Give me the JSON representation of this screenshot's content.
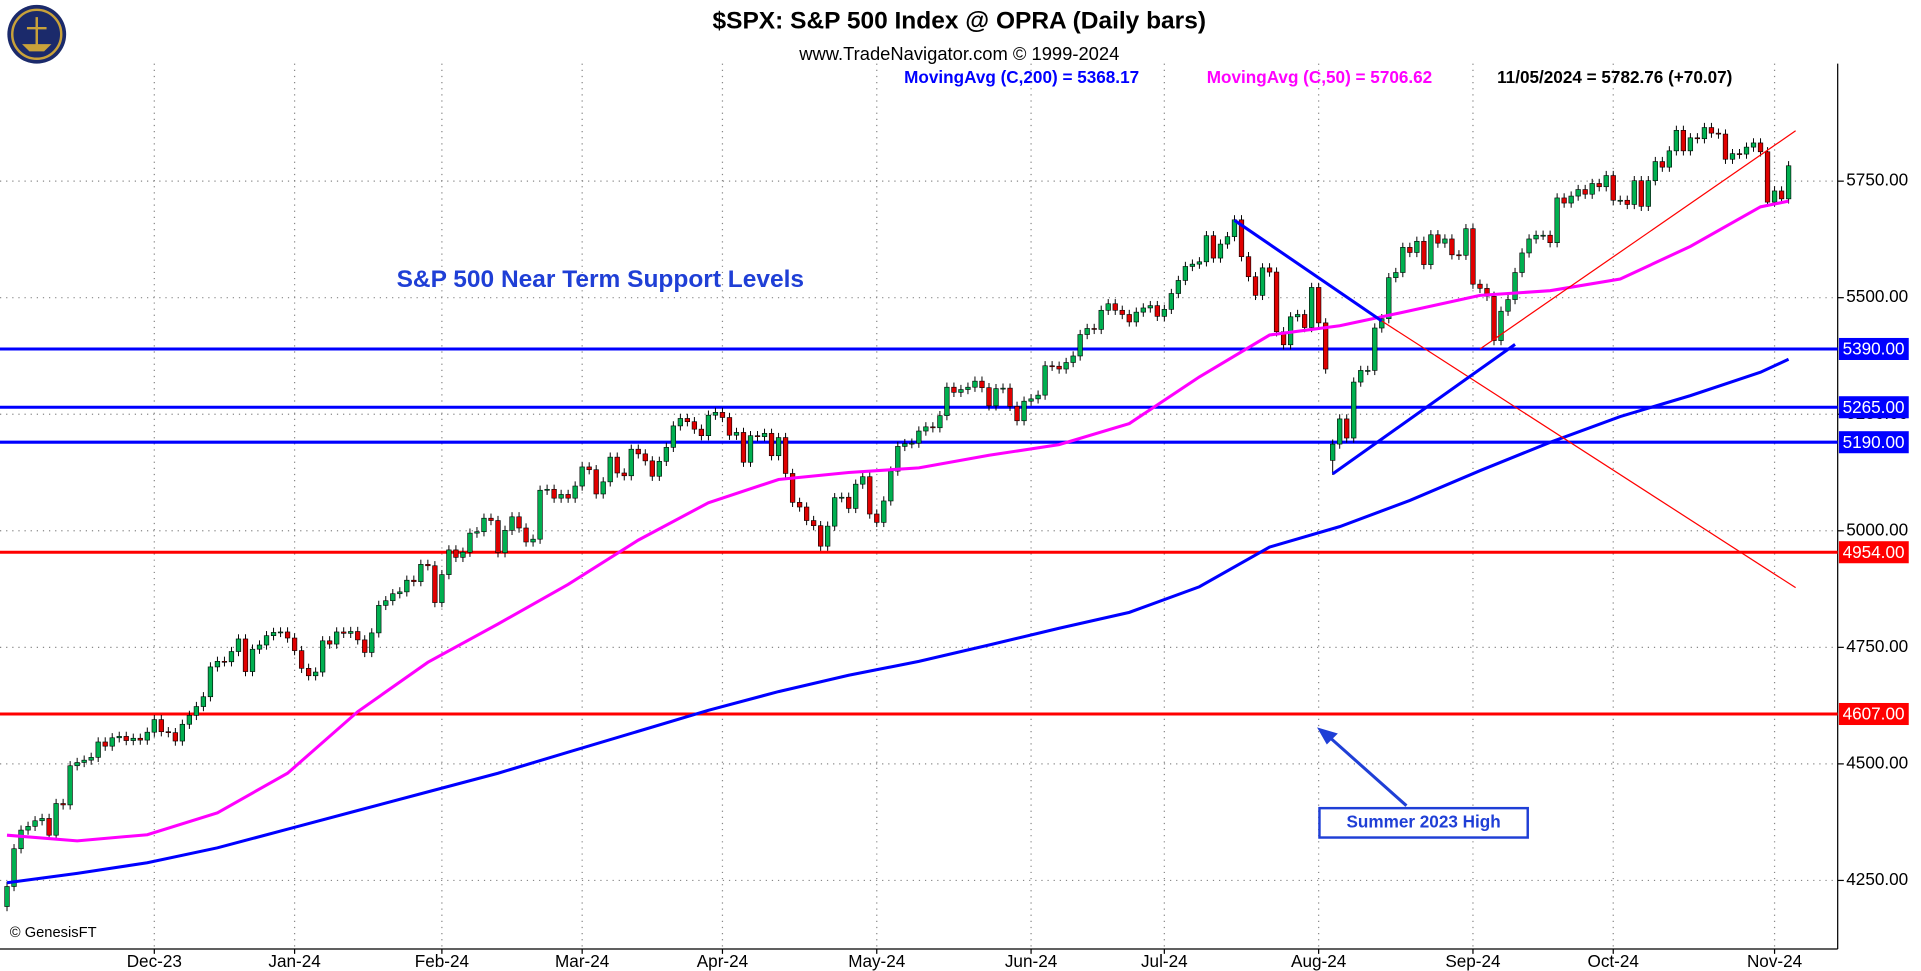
{
  "chart_data": {
    "type": "candlestick",
    "title": "$SPX:  S&P 500 Index @ OPRA  (Daily bars)",
    "subtitle": "www.TradeNavigator.com © 1999-2024",
    "last_label": "11/05/2024 = 5782.76 (+70.07)",
    "annotation": "S&P 500 Near Term Support Levels",
    "callout": "Summer 2023 High",
    "copyright": "© GenesisFT",
    "up_color": "#00b050",
    "down_color": "#e00000",
    "grid": true,
    "xlim": [
      -1,
      261
    ],
    "ylim": [
      4103,
      6002
    ],
    "xticks": [
      {
        "value": 21,
        "label": "Dec-23"
      },
      {
        "value": 41,
        "label": "Jan-24"
      },
      {
        "value": 62,
        "label": "Feb-24"
      },
      {
        "value": 82,
        "label": "Mar-24"
      },
      {
        "value": 102,
        "label": "Apr-24"
      },
      {
        "value": 124,
        "label": "May-24"
      },
      {
        "value": 146,
        "label": "Jun-24"
      },
      {
        "value": 165,
        "label": "Jul-24"
      },
      {
        "value": 187,
        "label": "Aug-24"
      },
      {
        "value": 209,
        "label": "Sep-24"
      },
      {
        "value": 229,
        "label": "Oct-24"
      },
      {
        "value": 252,
        "label": "Nov-24"
      }
    ],
    "yticks": [
      {
        "value": 4250,
        "label": "4250.00"
      },
      {
        "value": 4500,
        "label": "4500.00"
      },
      {
        "value": 4750,
        "label": "4750.00"
      },
      {
        "value": 5000,
        "label": "5000.00"
      },
      {
        "value": 5250,
        "label": "5250.00"
      },
      {
        "value": 5500,
        "label": "5500.00"
      },
      {
        "value": 5750,
        "label": "5750.00"
      }
    ],
    "open": [
      4194,
      4237,
      4318,
      4358,
      4366,
      4378,
      4383,
      4347,
      4415,
      4412,
      4496,
      4503,
      4508,
      4514,
      4547,
      4538,
      4556,
      4559,
      4550,
      4555,
      4551,
      4568,
      4595,
      4569,
      4567,
      4549,
      4585,
      4604,
      4623,
      4644,
      4708,
      4720,
      4719,
      4741,
      4768,
      4698,
      4746,
      4755,
      4775,
      4782,
      4783,
      4770,
      4743,
      4705,
      4689,
      4697,
      4764,
      4757,
      4783,
      4780,
      4784,
      4766,
      4739,
      4781,
      4840,
      4850,
      4865,
      4869,
      4894,
      4891,
      4928,
      4925,
      4846,
      4906,
      4959,
      4943,
      4954,
      4995,
      4998,
      5027,
      5022,
      4953,
      5001,
      5030,
      5006,
      4976,
      4982,
      5087,
      5089,
      5070,
      5078,
      5070,
      5096,
      5137,
      5131,
      5079,
      5105,
      5158,
      5124,
      5118,
      5175,
      5165,
      5150,
      5117,
      5149,
      5179,
      5225,
      5241,
      5234,
      5218,
      5204,
      5248,
      5254,
      5243,
      5205,
      5211,
      5147,
      5204,
      5202,
      5209,
      5161,
      5200,
      5123,
      5061,
      5051,
      5022,
      5011,
      4967,
      5010,
      5071,
      5072,
      5048,
      5100,
      5116,
      5036,
      5018,
      5064,
      5128,
      5181,
      5187,
      5188,
      5214,
      5223,
      5221,
      5247,
      5308,
      5297,
      5303,
      5308,
      5321,
      5307,
      5268,
      5305,
      5306,
      5267,
      5236,
      5278,
      5283,
      5291,
      5354,
      5353,
      5347,
      5361,
      5375,
      5421,
      5434,
      5432,
      5473,
      5487,
      5473,
      5464,
      5448,
      5469,
      5478,
      5483,
      5460,
      5475,
      5509,
      5537,
      5567,
      5572,
      5577,
      5633,
      5585,
      5615,
      5631,
      5667,
      5588,
      5545,
      5505,
      5564,
      5555,
      5427,
      5399,
      5459,
      5464,
      5436,
      5522,
      5446,
      5151,
      5186,
      5240,
      5199,
      5319,
      5344,
      5344,
      5435,
      5455,
      5543,
      5554,
      5608,
      5597,
      5621,
      5571,
      5635,
      5617,
      5626,
      5592,
      5591,
      5648,
      5529,
      5520,
      5503,
      5408,
      5471,
      5496,
      5554,
      5596,
      5626,
      5634,
      5634,
      5618,
      5714,
      5703,
      5718,
      5732,
      5722,
      5745,
      5738,
      5762,
      5709,
      5709,
      5700,
      5751,
      5696,
      5751,
      5792,
      5780,
      5815,
      5859,
      5815,
      5843,
      5841,
      5865,
      5853,
      5851,
      5797,
      5809,
      5808,
      5823,
      5832,
      5813,
      5705,
      5729,
      5712
    ],
    "high": [
      4247,
      4328,
      4368,
      4376,
      4388,
      4393,
      4393,
      4425,
      4425,
      4506,
      4513,
      4518,
      4524,
      4557,
      4557,
      4566,
      4569,
      4569,
      4565,
      4565,
      4578,
      4605,
      4605,
      4579,
      4577,
      4595,
      4614,
      4633,
      4654,
      4718,
      4730,
      4730,
      4751,
      4778,
      4778,
      4756,
      4765,
      4785,
      4792,
      4793,
      4793,
      4780,
      4753,
      4715,
      4707,
      4774,
      4774,
      4793,
      4793,
      4794,
      4794,
      4776,
      4791,
      4850,
      4860,
      4875,
      4879,
      4904,
      4904,
      4938,
      4938,
      4935,
      4916,
      4969,
      4969,
      4964,
      5005,
      5008,
      5037,
      5037,
      5032,
      5011,
      5040,
      5040,
      5016,
      4992,
      5097,
      5099,
      5099,
      5088,
      5088,
      5106,
      5147,
      5147,
      5141,
      5115,
      5168,
      5168,
      5134,
      5185,
      5185,
      5175,
      5160,
      5159,
      5189,
      5235,
      5251,
      5251,
      5244,
      5228,
      5258,
      5264,
      5264,
      5253,
      5221,
      5221,
      5214,
      5214,
      5219,
      5219,
      5210,
      5210,
      5133,
      5071,
      5061,
      5032,
      5021,
      5020,
      5081,
      5082,
      5082,
      5110,
      5126,
      5126,
      5046,
      5074,
      5138,
      5191,
      5197,
      5198,
      5224,
      5233,
      5233,
      5257,
      5318,
      5318,
      5313,
      5318,
      5331,
      5331,
      5317,
      5315,
      5316,
      5316,
      5277,
      5288,
      5293,
      5301,
      5364,
      5364,
      5363,
      5371,
      5385,
      5431,
      5444,
      5444,
      5483,
      5497,
      5497,
      5483,
      5474,
      5479,
      5488,
      5493,
      5493,
      5485,
      5519,
      5547,
      5577,
      5582,
      5587,
      5643,
      5643,
      5625,
      5641,
      5677,
      5677,
      5598,
      5555,
      5574,
      5574,
      5565,
      5437,
      5469,
      5474,
      5474,
      5532,
      5532,
      5456,
      5196,
      5250,
      5250,
      5329,
      5354,
      5354,
      5445,
      5465,
      5553,
      5564,
      5618,
      5618,
      5631,
      5631,
      5645,
      5645,
      5636,
      5636,
      5602,
      5658,
      5658,
      5539,
      5530,
      5513,
      5481,
      5506,
      5564,
      5606,
      5636,
      5644,
      5644,
      5644,
      5724,
      5724,
      5728,
      5742,
      5742,
      5755,
      5755,
      5772,
      5772,
      5719,
      5719,
      5761,
      5761,
      5761,
      5802,
      5802,
      5825,
      5869,
      5869,
      5853,
      5853,
      5875,
      5875,
      5863,
      5861,
      5819,
      5819,
      5833,
      5842,
      5842,
      5823,
      5739,
      5739,
      5793
    ],
    "low": [
      4184,
      4227,
      4308,
      4348,
      4356,
      4368,
      4337,
      4337,
      4402,
      4402,
      4486,
      4493,
      4498,
      4504,
      4528,
      4528,
      4546,
      4540,
      4540,
      4541,
      4541,
      4558,
      4559,
      4557,
      4539,
      4539,
      4575,
      4594,
      4613,
      4634,
      4698,
      4709,
      4709,
      4731,
      4688,
      4688,
      4736,
      4745,
      4765,
      4772,
      4760,
      4733,
      4695,
      4679,
      4679,
      4687,
      4747,
      4747,
      4770,
      4770,
      4756,
      4729,
      4729,
      4771,
      4830,
      4840,
      4855,
      4859,
      4881,
      4881,
      4915,
      4836,
      4836,
      4896,
      4933,
      4933,
      4944,
      4985,
      4988,
      5012,
      4943,
      4943,
      4991,
      4996,
      4966,
      4966,
      4972,
      5077,
      5060,
      5060,
      5060,
      5060,
      5086,
      5121,
      5069,
      5069,
      5095,
      5114,
      5108,
      5108,
      5155,
      5140,
      5107,
      5107,
      5139,
      5169,
      5215,
      5224,
      5208,
      5194,
      5194,
      5238,
      5233,
      5195,
      5195,
      5137,
      5137,
      5192,
      5192,
      5151,
      5151,
      5113,
      5051,
      5041,
      5012,
      5001,
      4957,
      4957,
      5000,
      5061,
      5038,
      5038,
      5090,
      5026,
      5008,
      5008,
      5054,
      5118,
      5171,
      5177,
      5178,
      5204,
      5211,
      5211,
      5237,
      5287,
      5287,
      5293,
      5298,
      5297,
      5258,
      5258,
      5295,
      5257,
      5226,
      5226,
      5268,
      5273,
      5281,
      5343,
      5337,
      5337,
      5351,
      5365,
      5411,
      5422,
      5422,
      5463,
      5463,
      5454,
      5438,
      5438,
      5459,
      5468,
      5450,
      5450,
      5465,
      5499,
      5527,
      5557,
      5562,
      5567,
      5575,
      5575,
      5605,
      5621,
      5578,
      5535,
      5495,
      5495,
      5545,
      5417,
      5389,
      5389,
      5449,
      5426,
      5426,
      5436,
      5337,
      5120,
      5176,
      5189,
      5189,
      5309,
      5334,
      5334,
      5425,
      5445,
      5533,
      5544,
      5587,
      5587,
      5561,
      5561,
      5607,
      5607,
      5582,
      5581,
      5581,
      5519,
      5510,
      5493,
      5398,
      5398,
      5461,
      5486,
      5544,
      5586,
      5616,
      5624,
      5608,
      5608,
      5693,
      5693,
      5708,
      5712,
      5712,
      5728,
      5728,
      5699,
      5699,
      5690,
      5690,
      5686,
      5686,
      5741,
      5770,
      5770,
      5805,
      5805,
      5805,
      5831,
      5831,
      5843,
      5841,
      5787,
      5787,
      5798,
      5798,
      5813,
      5803,
      5695,
      5695,
      5702,
      5702
    ],
    "close": [
      4237,
      4318,
      4358,
      4366,
      4378,
      4383,
      4347,
      4415,
      4412,
      4496,
      4503,
      4508,
      4514,
      4547,
      4538,
      4556,
      4559,
      4550,
      4555,
      4551,
      4568,
      4595,
      4569,
      4567,
      4549,
      4585,
      4604,
      4623,
      4644,
      4708,
      4720,
      4719,
      4741,
      4768,
      4698,
      4746,
      4755,
      4775,
      4782,
      4783,
      4770,
      4743,
      4705,
      4689,
      4697,
      4764,
      4757,
      4783,
      4780,
      4784,
      4766,
      4739,
      4781,
      4840,
      4850,
      4865,
      4869,
      4894,
      4891,
      4928,
      4925,
      4846,
      4906,
      4959,
      4943,
      4954,
      4995,
      4998,
      5027,
      5022,
      4953,
      5001,
      5030,
      5006,
      4976,
      4982,
      5087,
      5089,
      5070,
      5078,
      5070,
      5096,
      5137,
      5131,
      5079,
      5105,
      5158,
      5124,
      5118,
      5175,
      5165,
      5150,
      5117,
      5149,
      5179,
      5225,
      5241,
      5234,
      5218,
      5204,
      5248,
      5254,
      5243,
      5205,
      5211,
      5147,
      5204,
      5202,
      5209,
      5161,
      5200,
      5123,
      5061,
      5051,
      5022,
      5011,
      4967,
      5010,
      5071,
      5072,
      5048,
      5100,
      5116,
      5036,
      5018,
      5064,
      5128,
      5181,
      5187,
      5188,
      5214,
      5223,
      5221,
      5247,
      5308,
      5297,
      5303,
      5308,
      5321,
      5307,
      5268,
      5305,
      5306,
      5267,
      5236,
      5278,
      5283,
      5291,
      5354,
      5353,
      5347,
      5361,
      5375,
      5421,
      5434,
      5432,
      5473,
      5487,
      5473,
      5464,
      5448,
      5469,
      5478,
      5483,
      5460,
      5475,
      5509,
      5537,
      5567,
      5572,
      5577,
      5633,
      5585,
      5615,
      5631,
      5667,
      5588,
      5545,
      5505,
      5564,
      5555,
      5427,
      5399,
      5459,
      5464,
      5436,
      5522,
      5446,
      5347,
      5186,
      5240,
      5199,
      5319,
      5344,
      5344,
      5435,
      5455,
      5543,
      5554,
      5608,
      5597,
      5621,
      5571,
      5635,
      5617,
      5626,
      5592,
      5591,
      5648,
      5529,
      5520,
      5503,
      5408,
      5471,
      5496,
      5554,
      5596,
      5626,
      5634,
      5634,
      5618,
      5714,
      5703,
      5718,
      5732,
      5722,
      5745,
      5738,
      5762,
      5709,
      5709,
      5700,
      5751,
      5696,
      5751,
      5792,
      5780,
      5815,
      5859,
      5815,
      5843,
      5841,
      5865,
      5853,
      5851,
      5797,
      5809,
      5808,
      5823,
      5832,
      5813,
      5705,
      5729,
      5712,
      5783
    ],
    "series": [
      {
        "name": "MovingAvg (C,200) = 5368.17",
        "color": "#0000ff",
        "x": [
          0,
          10,
          20,
          30,
          40,
          50,
          60,
          70,
          80,
          90,
          100,
          110,
          120,
          130,
          140,
          150,
          160,
          170,
          180,
          190,
          200,
          210,
          220,
          230,
          240,
          250,
          254
        ],
        "values": [
          4245,
          4265,
          4288,
          4320,
          4360,
          4400,
          4440,
          4480,
          4525,
          4570,
          4615,
          4655,
          4690,
          4720,
          4755,
          4791,
          4825,
          4880,
          4965,
          5009,
          5065,
          5129,
          5190,
          5245,
          5290,
          5340,
          5368
        ]
      },
      {
        "name": "MovingAvg (C,50) = 5706.62",
        "color": "#ff00ff",
        "x": [
          0,
          10,
          20,
          30,
          40,
          50,
          60,
          70,
          80,
          90,
          100,
          110,
          120,
          130,
          140,
          150,
          160,
          170,
          180,
          190,
          200,
          210,
          220,
          230,
          240,
          250,
          254
        ],
        "values": [
          4347,
          4335,
          4348,
          4395,
          4480,
          4612,
          4718,
          4800,
          4885,
          4980,
          5060,
          5110,
          5125,
          5135,
          5162,
          5185,
          5230,
          5330,
          5420,
          5440,
          5472,
          5505,
          5515,
          5540,
          5610,
          5695,
          5707
        ]
      }
    ],
    "levels": [
      {
        "value": 5390,
        "label": "5390.00",
        "color": "#0000ff"
      },
      {
        "value": 5265,
        "label": "5265.00",
        "color": "#0000ff"
      },
      {
        "value": 5190,
        "label": "5190.00",
        "color": "#0000ff"
      },
      {
        "value": 4954,
        "label": "4954.00",
        "color": "#ff0000"
      },
      {
        "value": 4607,
        "label": "4607.00",
        "color": "#ff0000"
      }
    ],
    "trendlines": [
      {
        "x": [
          175,
          196
        ],
        "y": [
          5666,
          5450
        ],
        "color": "#0000ff"
      },
      {
        "x": [
          196,
          255
        ],
        "y": [
          5450,
          4878
        ],
        "color": "#ff0000"
      },
      {
        "x": [
          210,
          255
        ],
        "y": [
          5390,
          5858
        ],
        "color": "#ff0000"
      },
      {
        "x": [
          189,
          215
        ],
        "y": [
          5122,
          5400
        ],
        "color": "#0000ff"
      }
    ]
  }
}
